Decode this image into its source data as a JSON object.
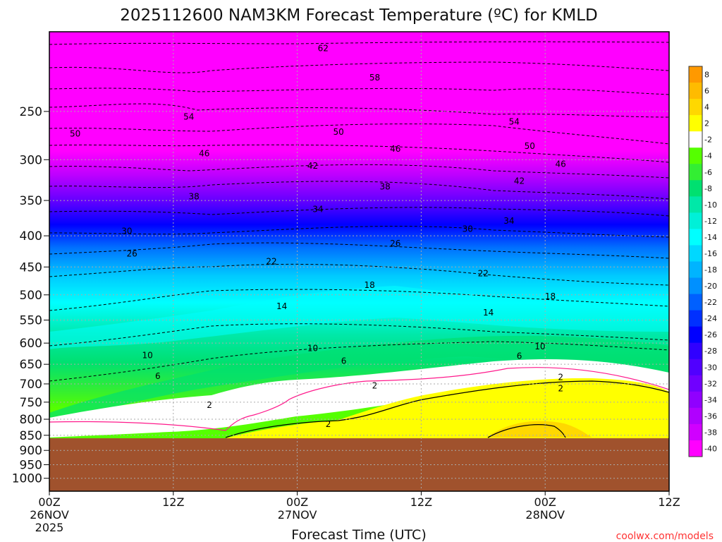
{
  "chart_data": {
    "type": "contour",
    "title": "2025112600 NAM3KM Forecast Temperature (ºC) for KMLD",
    "xlabel": "Forecast Time (UTC)",
    "ylabel": "",
    "x_ticks": [
      {
        "top": "00Z",
        "mid": "26NOV",
        "bot": "2025",
        "hour": 0
      },
      {
        "top": "12Z",
        "mid": "",
        "bot": "",
        "hour": 12
      },
      {
        "top": "00Z",
        "mid": "27NOV",
        "bot": "",
        "hour": 24
      },
      {
        "top": "12Z",
        "mid": "",
        "bot": "",
        "hour": 36
      },
      {
        "top": "00Z",
        "mid": "28NOV",
        "bot": "",
        "hour": 48
      },
      {
        "top": "12Z",
        "mid": "",
        "bot": "",
        "hour": 60
      }
    ],
    "xlim_hours": [
      0,
      60
    ],
    "y_ticks": [
      {
        "label": "250",
        "p": 250
      },
      {
        "label": "300",
        "p": 300
      },
      {
        "label": "350",
        "p": 350
      },
      {
        "label": "400",
        "p": 400
      },
      {
        "label": "450",
        "p": 450
      },
      {
        "label": "500",
        "p": 500
      },
      {
        "label": "550",
        "p": 550
      },
      {
        "label": "600",
        "p": 600
      },
      {
        "label": "650",
        "p": 650
      },
      {
        "label": "700",
        "p": 700
      },
      {
        "label": "750",
        "p": 750
      },
      {
        "label": "800",
        "p": 800
      },
      {
        "label": "850",
        "p": 850
      },
      {
        "label": "900",
        "p": 900
      },
      {
        "label": "950",
        "p": 950
      },
      {
        "label": "1000",
        "p": 1000
      }
    ],
    "y_scale": "log-pressure",
    "ylim_hpa": [
      1050,
      185
    ],
    "colorbar": {
      "labels": [
        "8",
        "6",
        "4",
        "2",
        "-2",
        "-4",
        "-6",
        "-8",
        "-10",
        "-12",
        "-14",
        "-16",
        "-18",
        "-20",
        "-22",
        "-24",
        "-26",
        "-28",
        "-30",
        "-32",
        "-34",
        "-36",
        "-38",
        "-40"
      ],
      "colors": [
        "#ff9900",
        "#ffbb00",
        "#ffd800",
        "#ffff00",
        "#ffffff",
        "#55ff00",
        "#33ee33",
        "#00e070",
        "#00e8a8",
        "#00f0d8",
        "#00ffff",
        "#00d8ff",
        "#00b4ff",
        "#0090ff",
        "#0060ff",
        "#0030ff",
        "#0000ff",
        "#3000ff",
        "#5000ff",
        "#7000ff",
        "#9000ff",
        "#b000ff",
        "#d000ff",
        "#ff00ff"
      ]
    },
    "ground_color": "#a0522d",
    "contour_labels": [
      {
        "text": "62",
        "hour": 26.5,
        "p": 197
      },
      {
        "text": "58",
        "hour": 31.5,
        "p": 220
      },
      {
        "text": "54",
        "hour": 13.5,
        "p": 255
      },
      {
        "text": "54",
        "hour": 45,
        "p": 260
      },
      {
        "text": "50",
        "hour": 2.5,
        "p": 272
      },
      {
        "text": "50",
        "hour": 28,
        "p": 270
      },
      {
        "text": "50",
        "hour": 46.5,
        "p": 285
      },
      {
        "text": "46",
        "hour": 15,
        "p": 293
      },
      {
        "text": "46",
        "hour": 33.5,
        "p": 288
      },
      {
        "text": "46",
        "hour": 49.5,
        "p": 305
      },
      {
        "text": "42",
        "hour": 25.5,
        "p": 307
      },
      {
        "text": "42",
        "hour": 45.5,
        "p": 325
      },
      {
        "text": "38",
        "hour": 14,
        "p": 345
      },
      {
        "text": "38",
        "hour": 32.5,
        "p": 332
      },
      {
        "text": "34",
        "hour": 26,
        "p": 362
      },
      {
        "text": "34",
        "hour": 44.5,
        "p": 378
      },
      {
        "text": "30",
        "hour": 7.5,
        "p": 393
      },
      {
        "text": "30",
        "hour": 40.5,
        "p": 390
      },
      {
        "text": "26",
        "hour": 8,
        "p": 428
      },
      {
        "text": "26",
        "hour": 33.5,
        "p": 412
      },
      {
        "text": "22",
        "hour": 21.5,
        "p": 441
      },
      {
        "text": "22",
        "hour": 42,
        "p": 461
      },
      {
        "text": "18",
        "hour": 31,
        "p": 482
      },
      {
        "text": "18",
        "hour": 48.5,
        "p": 503
      },
      {
        "text": "14",
        "hour": 22.5,
        "p": 522
      },
      {
        "text": "14",
        "hour": 42.5,
        "p": 535
      },
      {
        "text": "10",
        "hour": 9.5,
        "p": 628
      },
      {
        "text": "10",
        "hour": 25.5,
        "p": 612
      },
      {
        "text": "10",
        "hour": 47.5,
        "p": 608
      },
      {
        "text": "6",
        "hour": 10.5,
        "p": 680
      },
      {
        "text": "6",
        "hour": 28.5,
        "p": 642
      },
      {
        "text": "6",
        "hour": 45.5,
        "p": 630
      },
      {
        "text": "2",
        "hour": 15.5,
        "p": 758
      },
      {
        "text": "2",
        "hour": 31.5,
        "p": 705
      },
      {
        "text": "2",
        "hour": 49.5,
        "p": 683
      },
      {
        "text": "2",
        "hour": 27,
        "p": 815
      },
      {
        "text": "2",
        "hour": 49.5,
        "p": 712
      }
    ],
    "grid": true
  },
  "credit": "coolwx.com/models"
}
